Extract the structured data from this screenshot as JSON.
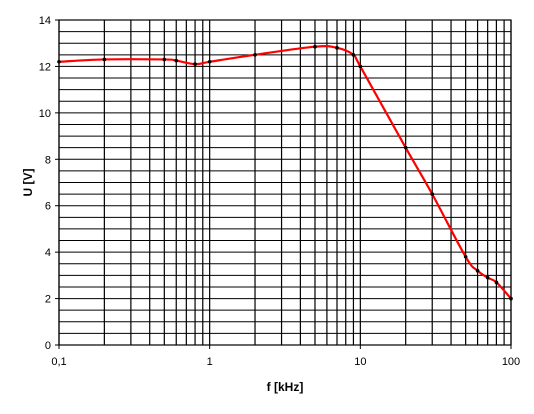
{
  "chart_data": {
    "type": "line",
    "title": "",
    "xlabel": "f [kHz]",
    "ylabel": "U [V]",
    "x_scale": "log",
    "xlim": [
      0.1,
      100
    ],
    "ylim": [
      0,
      14
    ],
    "x_tick_labels": [
      {
        "value": 0.1,
        "label": "0,1"
      },
      {
        "value": 1,
        "label": "1"
      },
      {
        "value": 10,
        "label": "10"
      },
      {
        "value": 100,
        "label": "100"
      }
    ],
    "y_tick_labels": [
      {
        "value": 0,
        "label": "0"
      },
      {
        "value": 2,
        "label": "2"
      },
      {
        "value": 4,
        "label": "4"
      },
      {
        "value": 6,
        "label": "6"
      },
      {
        "value": 8,
        "label": "8"
      },
      {
        "value": 10,
        "label": "10"
      },
      {
        "value": 12,
        "label": "12"
      },
      {
        "value": 14,
        "label": "14"
      }
    ],
    "y_minor_step": 0.5,
    "grid": true,
    "series": [
      {
        "color": "#ff0000",
        "marker_color": "#000000",
        "x": [
          0.1,
          0.2,
          0.5,
          0.6,
          0.8,
          1.0,
          2.0,
          5.0,
          7.0,
          9.0,
          10.0,
          20.0,
          30.0,
          50.0,
          60.0,
          70.0,
          80.0,
          100.0
        ],
        "y": [
          12.2,
          12.3,
          12.3,
          12.25,
          12.1,
          12.2,
          12.5,
          12.85,
          12.8,
          12.5,
          12.0,
          8.5,
          6.5,
          3.8,
          3.2,
          2.9,
          2.7,
          2.0
        ]
      }
    ]
  }
}
